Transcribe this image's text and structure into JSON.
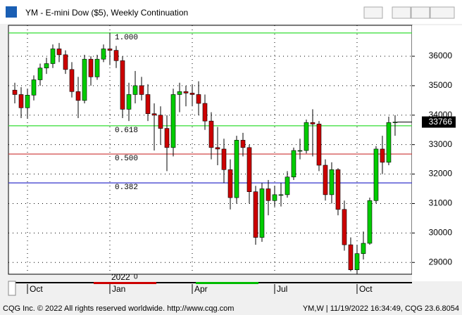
{
  "chart_data": {
    "type": "candlestick",
    "title": "YM - E-mini Dow ($5), Weekly Continuation",
    "open": [
      34850,
      34700,
      34250,
      34680,
      35200,
      35600,
      35750,
      36250,
      36050,
      35550,
      34800,
      34500,
      35900,
      35300,
      35900,
      36250,
      36200,
      35850,
      34200,
      34700,
      35000,
      34700,
      34050,
      34000,
      33550,
      32900,
      34700,
      34800,
      34750,
      34700,
      34400,
      33800,
      32900,
      32850,
      32150,
      31200,
      33150,
      32900,
      31400,
      29850,
      31500,
      31100,
      31300,
      31300,
      31900,
      32800,
      32800,
      33750,
      33700,
      32300,
      31300,
      32150,
      30800,
      29600,
      28750,
      29300,
      29650,
      31100,
      32850,
      32400,
      33750
    ],
    "high": [
      35100,
      34950,
      34900,
      35350,
      35750,
      35950,
      36400,
      36450,
      36200,
      35800,
      35300,
      36050,
      36000,
      36050,
      36400,
      36800,
      36350,
      36000,
      35100,
      35500,
      35300,
      35050,
      34400,
      34300,
      34000,
      34900,
      35100,
      35000,
      35050,
      35150,
      34700,
      34100,
      33600,
      33200,
      32500,
      33300,
      33400,
      33000,
      31600,
      31700,
      31800,
      31600,
      31700,
      32100,
      32900,
      33200,
      33850,
      34200,
      33800,
      32500,
      32400,
      32200,
      31100,
      29850,
      29600,
      30050,
      31200,
      32950,
      33300,
      33950,
      34000
    ],
    "low": [
      34400,
      33900,
      33900,
      34500,
      35000,
      35400,
      35600,
      35800,
      35400,
      34600,
      33900,
      34400,
      35000,
      35200,
      35800,
      35700,
      35600,
      33900,
      33800,
      34400,
      34500,
      33800,
      32800,
      33000,
      32100,
      32600,
      34100,
      34300,
      34300,
      34000,
      33500,
      32500,
      32300,
      31700,
      30800,
      31000,
      32600,
      31000,
      29600,
      29700,
      30600,
      30900,
      30900,
      31200,
      31800,
      32500,
      32700,
      32600,
      32100,
      31100,
      31000,
      30600,
      29400,
      28700,
      28600,
      29100,
      29600,
      31000,
      32000,
      32300,
      33300
    ],
    "close": [
      34700,
      34250,
      34680,
      35200,
      35600,
      35750,
      36250,
      36050,
      35550,
      34800,
      34500,
      35900,
      35300,
      35900,
      36250,
      36200,
      35850,
      34200,
      34700,
      35000,
      34700,
      34050,
      34000,
      33550,
      32900,
      34700,
      34800,
      34750,
      34700,
      34400,
      33800,
      32900,
      32850,
      32150,
      31200,
      33150,
      32900,
      31400,
      29850,
      31500,
      31100,
      31300,
      31300,
      31900,
      32800,
      32800,
      33750,
      33700,
      32300,
      31300,
      32150,
      30800,
      29600,
      28750,
      29300,
      29650,
      31100,
      32850,
      32400,
      33750,
      33766
    ],
    "up_color": "#00cc00",
    "down_color": "#cc0000",
    "xlim": [
      -1,
      62.67
    ],
    "xticks": [
      {
        "value": 2,
        "label": "Oct"
      },
      {
        "value": 15,
        "label": "Jan"
      },
      {
        "value": 28,
        "label": "Apr"
      },
      {
        "value": 41,
        "label": "Jul"
      },
      {
        "value": 54,
        "label": "Oct"
      }
    ],
    "year_label": "2022",
    "year_label_suffix": "0",
    "ylim": [
      28600,
      37050
    ],
    "yticks": [
      29000,
      30000,
      31000,
      32000,
      33000,
      34000,
      35000,
      36000
    ],
    "grid": true,
    "levels": [
      {
        "label": "1.000",
        "value": 36790,
        "color": "#33dd33"
      },
      {
        "label": "0.618",
        "value": 33640,
        "color": "#33dd33"
      },
      {
        "label": "0.500",
        "value": 32680,
        "color": "#cc3333"
      },
      {
        "label": "0.382",
        "value": 31700,
        "color": "#3333cc"
      }
    ],
    "footer_left": "CQG Inc. © 2022 All rights reserved worldwide. http://www.cqg.com",
    "footer_right": "YM,W | 11/19/2022 16:34:49, CQG 23.6.8054"
  }
}
